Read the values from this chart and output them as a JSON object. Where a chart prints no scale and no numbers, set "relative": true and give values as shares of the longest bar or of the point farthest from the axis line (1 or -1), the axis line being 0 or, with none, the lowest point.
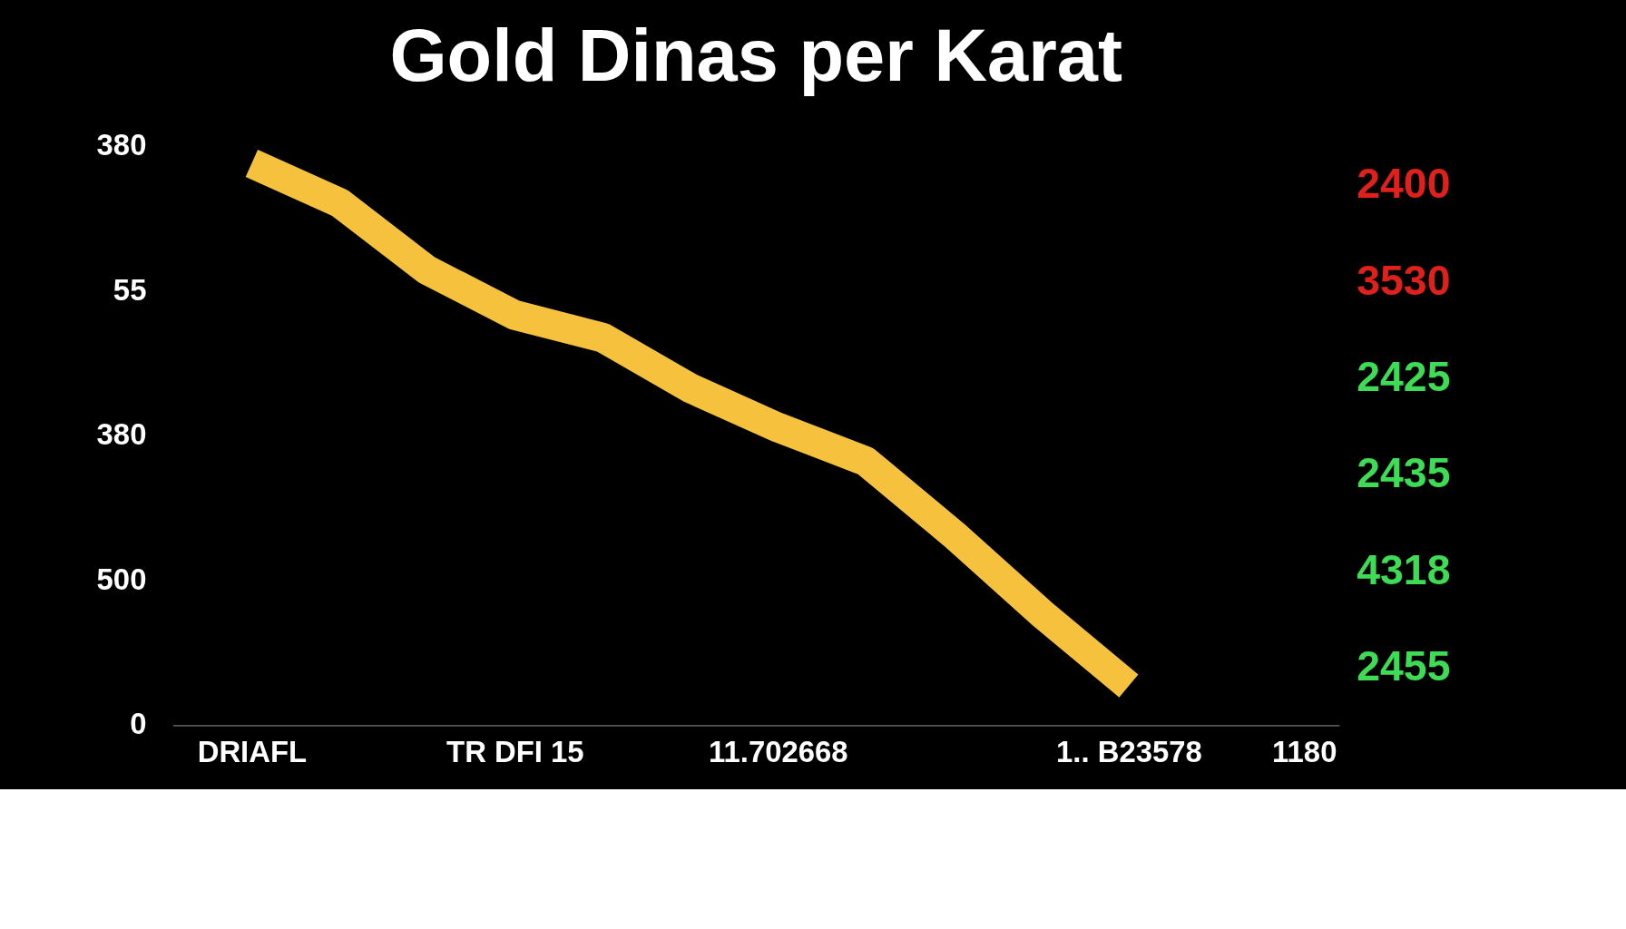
{
  "chart_data": {
    "type": "line",
    "title": "Gold Dinas per Karat",
    "categories": [
      "DRIAFL",
      null,
      null,
      "TR DFI 15",
      null,
      null,
      "11.702668",
      null,
      null,
      null,
      "1.. B23578",
      null,
      "1180"
    ],
    "series": [
      {
        "color": "#f6c23e",
        "values": [
          1,
          0.93,
          0.81,
          0.73,
          0.69,
          0.6,
          0.53,
          0.47,
          0.34,
          0.2,
          0.07,
          null,
          null
        ]
      }
    ],
    "relative": true,
    "annotations": [
      "380",
      "55",
      "380",
      "500",
      "0",
      "2400",
      "3530",
      "2425",
      "2435",
      "4318",
      "2455"
    ]
  }
}
